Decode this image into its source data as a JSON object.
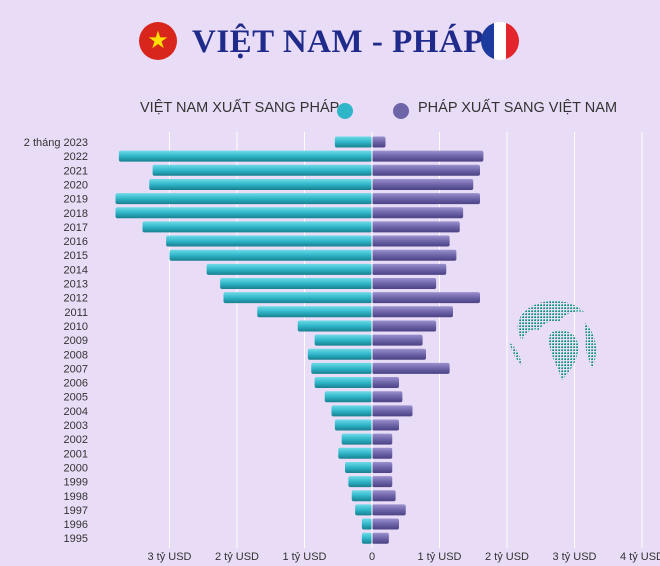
{
  "header": {
    "title": "VIỆT NAM - PHÁP",
    "flag_left_icon": "vietnam-flag-icon",
    "flag_right_icon": "france-flag-icon"
  },
  "legend": {
    "items": [
      {
        "label": "VIỆT NAM XUẤT SANG PHÁP",
        "color": "#2fb6c9"
      },
      {
        "label": "PHÁP XUẤT SANG VIỆT NAM",
        "color": "#6e64a8"
      }
    ]
  },
  "decor": {
    "globe_icon": "globe-icon"
  },
  "chart_data": {
    "type": "bar",
    "orientation": "horizontal-diverging",
    "categories": [
      "2 tháng 2023",
      "2022",
      "2021",
      "2020",
      "2019",
      "2018",
      "2017",
      "2016",
      "2015",
      "2014",
      "2013",
      "2012",
      "2011",
      "2010",
      "2009",
      "2008",
      "2007",
      "2006",
      "2005",
      "2004",
      "2003",
      "2002",
      "2001",
      "2000",
      "1999",
      "1998",
      "1997",
      "1996",
      "1995"
    ],
    "series": [
      {
        "name": "VIỆT NAM XUẤT SANG PHÁP",
        "color": "#2fb6c9",
        "direction": "left",
        "values": [
          0.55,
          3.75,
          3.25,
          3.3,
          3.8,
          3.8,
          3.4,
          3.05,
          3.0,
          2.45,
          2.25,
          2.2,
          1.7,
          1.1,
          0.85,
          0.95,
          0.9,
          0.85,
          0.7,
          0.6,
          0.55,
          0.45,
          0.5,
          0.4,
          0.35,
          0.3,
          0.25,
          0.15,
          0.15
        ]
      },
      {
        "name": "PHÁP XUẤT SANG VIỆT NAM",
        "color": "#6e64a8",
        "direction": "right",
        "values": [
          0.2,
          1.65,
          1.6,
          1.5,
          1.6,
          1.35,
          1.3,
          1.15,
          1.25,
          1.1,
          0.95,
          1.6,
          1.2,
          0.95,
          0.75,
          0.8,
          1.15,
          0.4,
          0.45,
          0.6,
          0.4,
          0.3,
          0.3,
          0.3,
          0.3,
          0.35,
          0.5,
          0.4,
          0.25
        ]
      }
    ],
    "xticks": [
      {
        "value": -3,
        "label": "3 tỷ USD"
      },
      {
        "value": -2,
        "label": "2 tỷ USD"
      },
      {
        "value": -1,
        "label": "1 tỷ USD"
      },
      {
        "value": 0,
        "label": "0"
      },
      {
        "value": 1,
        "label": "1 tỷ USD"
      },
      {
        "value": 2,
        "label": "2 tỷ USD"
      },
      {
        "value": 3,
        "label": "3 tỷ USD"
      },
      {
        "value": 4,
        "label": "4 tỷ USD"
      }
    ],
    "xlim": [
      -3.9,
      4.0
    ],
    "grid": true,
    "legend_position": "top"
  }
}
